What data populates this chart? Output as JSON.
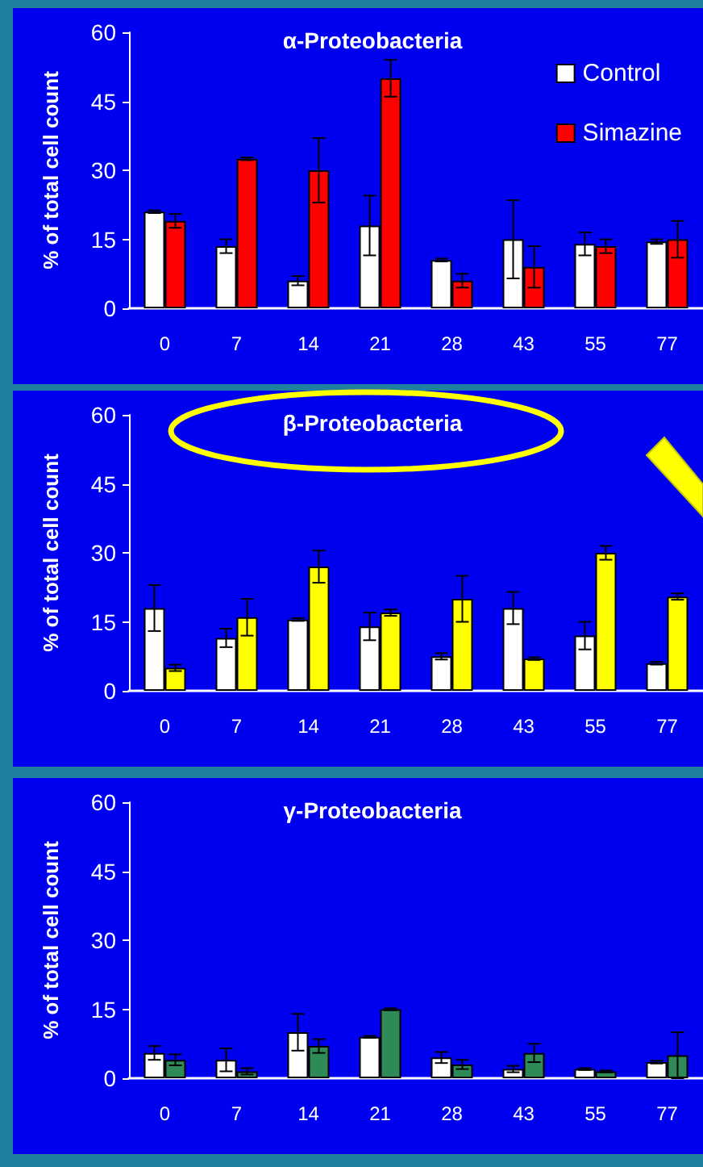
{
  "chart_data": [
    {
      "type": "bar",
      "title": "α-Proteobacteria",
      "ylabel": "% of total cell count",
      "categories": [
        "0",
        "7",
        "14",
        "21",
        "28",
        "43",
        "55",
        "77"
      ],
      "series": [
        {
          "name": "Control",
          "color": "#ffffff",
          "values": [
            21,
            13.5,
            6,
            18,
            10.5,
            15,
            14,
            14.5
          ],
          "errors": [
            0.3,
            1.5,
            1,
            6.5,
            0.3,
            8.5,
            2.5,
            0.5
          ]
        },
        {
          "name": "Simazine",
          "color": "#ff0000",
          "values": [
            19,
            32.5,
            30,
            50,
            6,
            9,
            13.5,
            15
          ],
          "errors": [
            1.5,
            0.3,
            7,
            4,
            1.5,
            4.5,
            1.5,
            4
          ]
        }
      ],
      "ylim": [
        0,
        60
      ],
      "yticks": [
        0,
        15,
        30,
        45,
        60
      ],
      "grid": false,
      "legend": "top right"
    },
    {
      "type": "bar",
      "title": "β-Proteobacteria",
      "ylabel": "% of total cell count",
      "categories": [
        "0",
        "7",
        "14",
        "21",
        "28",
        "43",
        "55",
        "77"
      ],
      "series": [
        {
          "color": "#ffffff",
          "values": [
            18,
            11.5,
            15.5,
            14,
            7.5,
            18,
            12,
            6
          ],
          "errors": [
            5,
            2,
            0.3,
            3,
            0.7,
            3.5,
            3,
            0.3
          ]
        },
        {
          "color": "#ffff00",
          "values": [
            5,
            16,
            27,
            17,
            20,
            7,
            30,
            20.5
          ],
          "errors": [
            0.7,
            4,
            3.5,
            0.7,
            5,
            0.3,
            1.5,
            0.7
          ]
        }
      ],
      "ylim": [
        0,
        60
      ],
      "yticks": [
        0,
        15,
        30,
        45,
        60
      ],
      "grid": false
    },
    {
      "type": "bar",
      "title": "γ-Proteobacteria",
      "ylabel": "% of total cell count",
      "categories": [
        "0",
        "7",
        "14",
        "21",
        "28",
        "43",
        "55",
        "77"
      ],
      "series": [
        {
          "color": "#ffffff",
          "values": [
            5.5,
            4,
            10,
            9,
            4.5,
            2,
            2,
            3.5
          ],
          "errors": [
            1.5,
            2.5,
            4,
            0.2,
            1.2,
            0.7,
            0.2,
            0.3
          ]
        },
        {
          "color": "#2e8b57",
          "values": [
            4,
            1.5,
            7,
            15,
            3,
            5.5,
            1.5,
            5
          ],
          "errors": [
            1.2,
            0.7,
            1.5,
            0.2,
            1,
            2,
            0.2,
            5
          ]
        }
      ],
      "ylim": [
        0,
        60
      ],
      "yticks": [
        0,
        15,
        30,
        45,
        60
      ],
      "grid": false
    }
  ]
}
